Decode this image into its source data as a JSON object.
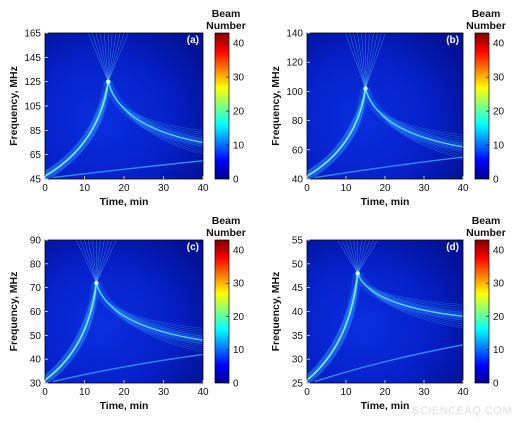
{
  "watermark": "SCIENCEAQ.COM",
  "colorbar": {
    "title_line1": "Beam",
    "title_line2": "Number",
    "min": 0,
    "max": 43,
    "ticks": [
      "0",
      "10",
      "20",
      "30",
      "40"
    ],
    "colormap": "jet"
  },
  "chart_data": [
    {
      "type": "heatmap",
      "panel_label": "(a)",
      "xlabel": "Time, min",
      "ylabel": "Frequency, MHz",
      "xlim": [
        0,
        40
      ],
      "ylim": [
        45,
        165
      ],
      "xticks": [
        "0",
        "10",
        "20",
        "30",
        "40"
      ],
      "yticks": [
        "45",
        "65",
        "85",
        "105",
        "125",
        "145",
        "165"
      ],
      "features": {
        "cusp_time_min": 16,
        "cusp_freq_mhz": 125,
        "upper_branch_end_freq_mhz": 75,
        "lower_branch_end_freq_mhz": 60
      }
    },
    {
      "type": "heatmap",
      "panel_label": "(b)",
      "xlabel": "Time, min",
      "ylabel": "Frequency, MHz",
      "xlim": [
        0,
        40
      ],
      "ylim": [
        40,
        140
      ],
      "xticks": [
        "0",
        "10",
        "20",
        "30",
        "40"
      ],
      "yticks": [
        "40",
        "60",
        "80",
        "100",
        "120",
        "140"
      ],
      "features": {
        "cusp_time_min": 15,
        "cusp_freq_mhz": 102,
        "upper_branch_end_freq_mhz": 62,
        "lower_branch_end_freq_mhz": 55
      }
    },
    {
      "type": "heatmap",
      "panel_label": "(c)",
      "xlabel": "Time, min",
      "ylabel": "Frequency, MHz",
      "xlim": [
        0,
        40
      ],
      "ylim": [
        30,
        90
      ],
      "xticks": [
        "0",
        "10",
        "20",
        "30",
        "40"
      ],
      "yticks": [
        "30",
        "40",
        "50",
        "60",
        "70",
        "80",
        "90"
      ],
      "features": {
        "cusp_time_min": 13,
        "cusp_freq_mhz": 72,
        "upper_branch_end_freq_mhz": 48,
        "lower_branch_end_freq_mhz": 42
      }
    },
    {
      "type": "heatmap",
      "panel_label": "(d)",
      "xlabel": "Time, min",
      "ylabel": "Frequency, MHz",
      "xlim": [
        0,
        40
      ],
      "ylim": [
        25,
        55
      ],
      "xticks": [
        "0",
        "10",
        "20",
        "30",
        "40"
      ],
      "yticks": [
        "25",
        "30",
        "35",
        "40",
        "45",
        "50",
        "55"
      ],
      "features": {
        "cusp_time_min": 13,
        "cusp_freq_mhz": 48,
        "upper_branch_end_freq_mhz": 39,
        "lower_branch_end_freq_mhz": 33
      }
    }
  ]
}
